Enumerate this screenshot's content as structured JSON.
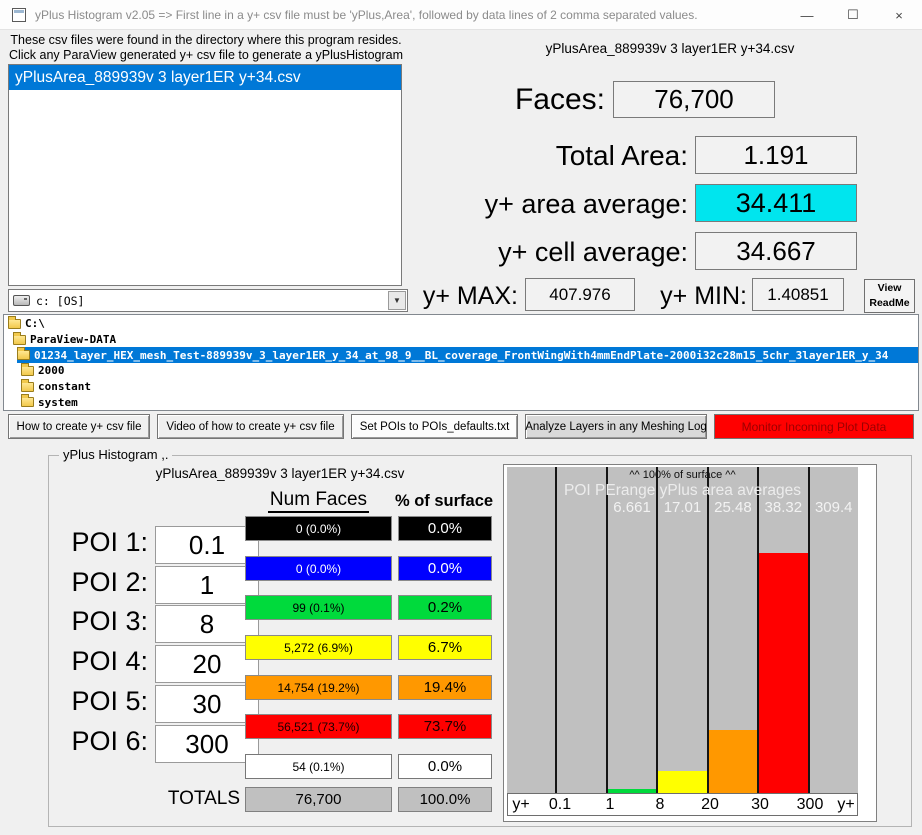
{
  "titlebar": {
    "title": "yPlus Histogram v2.05 =>  First line in a y+ csv file must be 'yPlus,Area', followed by data lines of 2 comma separated values.",
    "minimize_glyph": "—",
    "maximize_glyph": "☐",
    "close_glyph": "×"
  },
  "file_panel": {
    "instructions_line1": "These csv files were found in the directory where this program resides.",
    "instructions_line2": "Click any ParaView generated y+ csv file to generate a yPlusHistogram for it.",
    "files": [
      {
        "name": "yPlusArea_889939v 3 layer1ER y+34.csv",
        "selected": true
      }
    ],
    "drive": "c:  [OS]",
    "combo_arrow": "▼"
  },
  "stats": {
    "filename": "yPlusArea_889939v 3 layer1ER y+34.csv",
    "faces_label": "Faces:",
    "faces": "76,700",
    "total_area_label": "Total Area:",
    "total_area": "1.191",
    "area_avg_label": "y+ area average:",
    "area_avg": "34.411",
    "area_avg_bg": "#00e5ee",
    "cell_avg_label": "y+ cell average:",
    "cell_avg": "34.667",
    "max_label": "y+ MAX:",
    "max": "407.976",
    "min_label": "y+ MIN:",
    "min": "1.40851",
    "readme_line1": "View",
    "readme_line2": "ReadMe"
  },
  "dir_tree": {
    "items": [
      {
        "label": "C:\\",
        "selected": false
      },
      {
        "label": "ParaView-DATA",
        "selected": false
      },
      {
        "label": "01234_layer_HEX_mesh_Test-889939v_3_layer1ER_y_34_at_98_9__BL_coverage_FrontWingWith4mmEndPlate-2000i32c28m15_5chr_3layer1ER_y_34",
        "selected": true
      },
      {
        "label": "2000",
        "selected": false
      },
      {
        "label": "constant",
        "selected": false
      },
      {
        "label": "system",
        "selected": false
      }
    ]
  },
  "toolbar": {
    "buttons": [
      {
        "label": "How to create y+ csv file"
      },
      {
        "label": "Video of how to create y+ csv file"
      },
      {
        "label": "Set POIs to POIs_defaults.txt"
      },
      {
        "label": "Analyze Layers in any Meshing Log"
      },
      {
        "label": "Monitor Incoming Plot Data"
      }
    ]
  },
  "histogram_panel": {
    "legend": "yPlus Histogram ,.",
    "subtitle": "yPlusArea_889939v 3 layer1ER y+34.csv",
    "col_num_faces": "Num Faces",
    "col_pct_surface": "% of surface",
    "rows": [
      {
        "label": "POI 1:",
        "value": "0.1",
        "num_faces": "0 (0.0%)",
        "pct": "0.0%",
        "color": "#000000",
        "text_color": "#ffffff"
      },
      {
        "label": "POI 2:",
        "value": "1",
        "num_faces": "0 (0.0%)",
        "pct": "0.0%",
        "color": "#0000ff",
        "text_color": "#ffffff"
      },
      {
        "label": "POI 3:",
        "value": "8",
        "num_faces": "99 (0.1%)",
        "pct": "0.2%",
        "color": "#00da3c",
        "text_color": "#000000"
      },
      {
        "label": "POI 4:",
        "value": "20",
        "num_faces": "5,272 (6.9%)",
        "pct": "6.7%",
        "color": "#ffff00",
        "text_color": "#000000"
      },
      {
        "label": "POI 5:",
        "value": "30",
        "num_faces": "14,754 (19.2%)",
        "pct": "19.4%",
        "color": "#ff9800",
        "text_color": "#000000"
      },
      {
        "label": "POI 6:",
        "value": "300",
        "num_faces": "56,521 (73.7%)",
        "pct": "73.7%",
        "color": "#ff0000",
        "text_color": "#1a0000"
      }
    ],
    "overflow_row": {
      "num_faces": "54 (0.1%)",
      "pct": "0.0%"
    },
    "totals_label": "TOTALS",
    "totals_faces": "76,700",
    "totals_pct": "100.0%"
  },
  "chart_data": {
    "type": "bar",
    "title": "^^ 100% of surface ^^",
    "annotation": "POI PErange yPlus area averages",
    "ylabel": "% of surface",
    "ylim": [
      0,
      100
    ],
    "axis_labels": [
      "y+",
      "0.1",
      "1",
      "8",
      "20",
      "30",
      "300",
      "y+"
    ],
    "bins": [
      {
        "range": "< 0.1",
        "pct": 0,
        "avg": "",
        "color": null
      },
      {
        "range": "0.1 - 1",
        "pct": 0,
        "avg": "",
        "color": null
      },
      {
        "range": "1 - 8",
        "pct": 0.2,
        "avg": "6.661",
        "color": "#00da3c"
      },
      {
        "range": "8 - 20",
        "pct": 6.7,
        "avg": "17.01",
        "color": "#ffff00"
      },
      {
        "range": "20 - 30",
        "pct": 19.4,
        "avg": "25.48",
        "color": "#ff9800"
      },
      {
        "range": "30 - 300",
        "pct": 73.7,
        "avg": "38.32",
        "color": "#ff0000"
      },
      {
        "range": "> 300",
        "pct": 0,
        "avg": "309.4",
        "color": null
      }
    ]
  }
}
